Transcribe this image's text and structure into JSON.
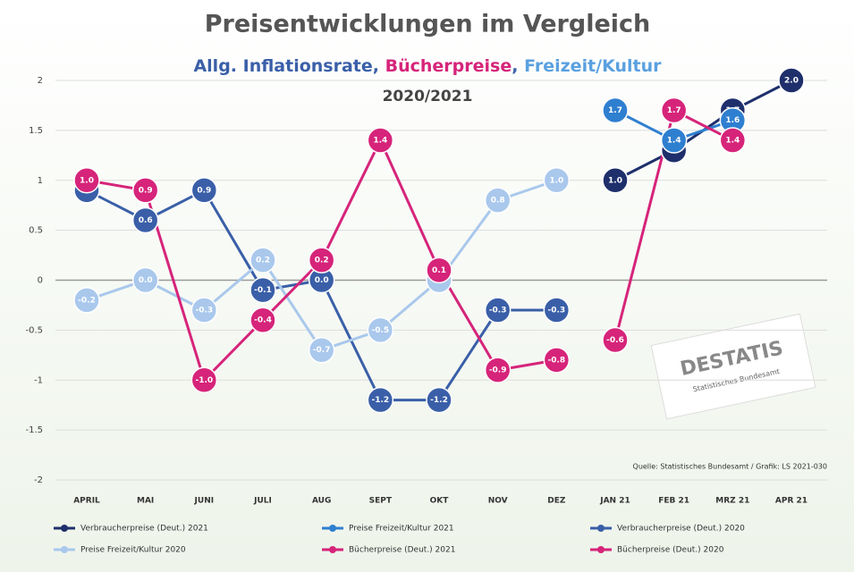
{
  "chart_data": {
    "type": "line",
    "title": "Preisentwicklungen im  Vergleich",
    "subtitle": [
      "Allg. Inflationsrate",
      ", ",
      "Bücherpreise",
      ", ",
      "Freizeit/Kultur"
    ],
    "subtitle_colors": [
      "#3a5fa8",
      "#3a5fa8",
      "#d6247a",
      "#3a5fa8",
      "#5aa0e0"
    ],
    "subtitle2": "2020/2021",
    "categories": [
      "APRIL",
      "MAI",
      "JUNI",
      "JULI",
      "AUG",
      "SEPT",
      "OKT",
      "NOV",
      "DEZ",
      "JAN 21",
      "FEB 21",
      "MRZ 21",
      "APR 21"
    ],
    "ylim": [
      -2,
      2
    ],
    "yticks": [
      2,
      1.5,
      1,
      0.5,
      0,
      -0.5,
      -1,
      -1.5,
      -2
    ],
    "grid": true,
    "series": [
      {
        "name": "Verbraucherpreise (Deut.) 2021",
        "color": "#1e2f6b",
        "values": [
          null,
          null,
          null,
          null,
          null,
          null,
          null,
          null,
          null,
          1.0,
          1.3,
          1.7,
          2.0
        ],
        "value_labels": [
          null,
          null,
          null,
          null,
          null,
          null,
          null,
          null,
          null,
          "1.0",
          "1.3",
          "1.7",
          "2.0"
        ]
      },
      {
        "name": "Preise Freizeit/Kultur 2021",
        "color": "#2f7fd0",
        "values": [
          null,
          null,
          null,
          null,
          null,
          null,
          null,
          null,
          null,
          1.7,
          1.4,
          1.6,
          null
        ],
        "value_labels": [
          null,
          null,
          null,
          null,
          null,
          null,
          null,
          null,
          null,
          "1.7",
          "1.4",
          "1.6",
          null
        ]
      },
      {
        "name": "Verbraucherpreise (Deut.) 2020",
        "color": "#3a5fa8",
        "values": [
          0.9,
          0.6,
          0.9,
          -0.1,
          0.0,
          -1.2,
          -1.2,
          -0.3,
          -0.3,
          null,
          null,
          null,
          null
        ],
        "value_labels": [
          "0.9",
          "0.6",
          "0.9",
          "-0.1",
          "0.0",
          "-1.2",
          "-1.2",
          "-0.3",
          "-0.3",
          null,
          null,
          null,
          null
        ]
      },
      {
        "name": "Preise Freizeit/Kultur 2020",
        "color": "#a9c8ec",
        "values": [
          -0.2,
          0.0,
          -0.3,
          0.2,
          -0.7,
          -0.5,
          0.0,
          0.8,
          1.0,
          null,
          null,
          null,
          null
        ],
        "value_labels": [
          "-0.2",
          "0.0",
          "-0.3",
          "0.2",
          "-0.7",
          "-0.5",
          "0.0",
          "0.8",
          "1.0",
          null,
          null,
          null,
          null
        ]
      },
      {
        "name": "Bücherpreise (Deut.) 2021",
        "color": "#d6247a",
        "values": [
          null,
          null,
          null,
          null,
          null,
          null,
          null,
          null,
          null,
          -0.6,
          1.7,
          1.4,
          null
        ],
        "value_labels": [
          null,
          null,
          null,
          null,
          null,
          null,
          null,
          null,
          null,
          "-0.6",
          "1.7",
          "1.4",
          null
        ]
      },
      {
        "name": "Bücherpreise (Deut.) 2020",
        "color": "#d6247a",
        "values": [
          1.0,
          0.9,
          -1.0,
          -0.4,
          0.2,
          1.4,
          0.1,
          -0.9,
          -0.8,
          null,
          null,
          null,
          null
        ],
        "value_labels": [
          "1.0",
          "0.9",
          "-1.0",
          "-0.4",
          "0.2",
          "1.4",
          "0.1",
          "-0.9",
          "-0.8",
          null,
          null,
          null,
          null
        ]
      }
    ],
    "source": "Quelle: Statistisches Bundesamt / Grafik: LS 2021-030",
    "logo": [
      "DESTATIS",
      "Statistisches Bundesamt"
    ]
  }
}
